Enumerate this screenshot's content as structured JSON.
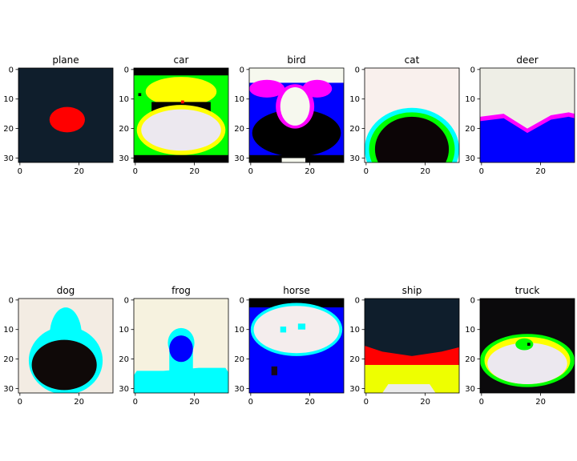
{
  "chart_data": [
    {
      "type": "heatmap",
      "title": "plane",
      "xticks": [
        "0",
        "20"
      ],
      "yticks": [
        "0",
        "10",
        "20",
        "30"
      ],
      "xlim": [
        0,
        32
      ],
      "ylim": [
        32,
        0
      ],
      "grid": false,
      "palette": {
        "bg": "#0f1e2c",
        "red": "#ff0000"
      },
      "regions": [
        {
          "shape": "rect",
          "color": "bg",
          "x": 0,
          "y": 0,
          "w": 32,
          "h": 32
        },
        {
          "shape": "ellipse",
          "color": "red",
          "cx": 16.5,
          "cy": 17.5,
          "rx": 6,
          "ry": 4.3
        }
      ]
    },
    {
      "type": "heatmap",
      "title": "car",
      "xticks": [
        "0",
        "20"
      ],
      "yticks": [
        "0",
        "10",
        "20",
        "30"
      ],
      "xlim": [
        0,
        32
      ],
      "ylim": [
        32,
        0
      ],
      "grid": false,
      "palette": {
        "black": "#000000",
        "green": "#00ff00",
        "yellow": "#ffff00",
        "white": "#ece8ef",
        "red": "#ff0000"
      },
      "regions": [
        {
          "shape": "rect",
          "color": "black",
          "x": 0,
          "y": 0,
          "w": 32,
          "h": 32
        },
        {
          "shape": "rect",
          "color": "green",
          "x": 0,
          "y": 2.5,
          "w": 32,
          "h": 27.5
        },
        {
          "shape": "ellipse",
          "color": "yellow",
          "cx": 16,
          "cy": 8,
          "rx": 12,
          "ry": 5
        },
        {
          "shape": "rect",
          "color": "black",
          "x": 6,
          "y": 11.5,
          "w": 20,
          "h": 4
        },
        {
          "shape": "ellipse",
          "color": "yellow",
          "cx": 16,
          "cy": 21,
          "rx": 15,
          "ry": 8.5
        },
        {
          "shape": "ellipse",
          "color": "white",
          "cx": 16,
          "cy": 21,
          "rx": 13.5,
          "ry": 7
        },
        {
          "shape": "rect",
          "color": "black",
          "x": 0,
          "y": 29.5,
          "w": 32,
          "h": 2.5
        },
        {
          "shape": "rect",
          "color": "black",
          "x": 1.5,
          "y": 8.5,
          "w": 1,
          "h": 1
        },
        {
          "shape": "rect",
          "color": "red",
          "x": 16,
          "y": 11,
          "w": 1,
          "h": 1
        }
      ]
    },
    {
      "type": "heatmap",
      "title": "bird",
      "xticks": [
        "0",
        "20"
      ],
      "yticks": [
        "0",
        "10",
        "20",
        "30"
      ],
      "xlim": [
        0,
        32
      ],
      "ylim": [
        32,
        0
      ],
      "grid": false,
      "palette": {
        "white": "#f6f8ee",
        "blue": "#0000ff",
        "magenta": "#ff00ff",
        "black": "#000000"
      },
      "regions": [
        {
          "shape": "rect",
          "color": "white",
          "x": 0,
          "y": 0,
          "w": 32,
          "h": 32
        },
        {
          "shape": "rect",
          "color": "blue",
          "x": 0,
          "y": 5,
          "w": 32,
          "h": 27
        },
        {
          "shape": "ellipse",
          "color": "magenta",
          "cx": 6,
          "cy": 7,
          "rx": 6,
          "ry": 3
        },
        {
          "shape": "ellipse",
          "color": "magenta",
          "cx": 23,
          "cy": 7,
          "rx": 5,
          "ry": 3
        },
        {
          "shape": "ellipse",
          "color": "black",
          "cx": 16,
          "cy": 22,
          "rx": 15,
          "ry": 8
        },
        {
          "shape": "ellipse",
          "color": "magenta",
          "cx": 15.5,
          "cy": 13,
          "rx": 6.5,
          "ry": 7.5
        },
        {
          "shape": "ellipse",
          "color": "white",
          "cx": 15.5,
          "cy": 13,
          "rx": 5,
          "ry": 6.5
        },
        {
          "shape": "rect",
          "color": "black",
          "x": 0,
          "y": 29.5,
          "w": 32,
          "h": 2.5
        },
        {
          "shape": "rect",
          "color": "white",
          "x": 11,
          "y": 30.5,
          "w": 8,
          "h": 1.5
        }
      ]
    },
    {
      "type": "heatmap",
      "title": "cat",
      "xticks": [
        "0",
        "20"
      ],
      "yticks": [
        "0",
        "10",
        "20",
        "30"
      ],
      "xlim": [
        0,
        32
      ],
      "ylim": [
        32,
        0
      ],
      "grid": false,
      "palette": {
        "white": "#f9f0ed",
        "cyan": "#00ffff",
        "green": "#00ff00",
        "black": "#0c0506"
      },
      "regions": [
        {
          "shape": "rect",
          "color": "white",
          "x": 0,
          "y": 0,
          "w": 32,
          "h": 32
        },
        {
          "shape": "ellipse",
          "color": "cyan",
          "cx": 16,
          "cy": 27.5,
          "rx": 16,
          "ry": 14
        },
        {
          "shape": "ellipse",
          "color": "green",
          "cx": 16,
          "cy": 27.5,
          "rx": 14.5,
          "ry": 12.5
        },
        {
          "shape": "ellipse",
          "color": "black",
          "cx": 16,
          "cy": 27.5,
          "rx": 12.5,
          "ry": 11
        }
      ]
    },
    {
      "type": "heatmap",
      "title": "deer",
      "xticks": [
        "0",
        "20"
      ],
      "yticks": [
        "0",
        "10",
        "20",
        "30"
      ],
      "xlim": [
        0,
        32
      ],
      "ylim": [
        32,
        0
      ],
      "grid": false,
      "palette": {
        "white": "#eeeee6",
        "magenta": "#ff00ff",
        "blue": "#0000ff"
      },
      "regions": [
        {
          "shape": "rect",
          "color": "white",
          "x": 0,
          "y": 0,
          "w": 32,
          "h": 32
        },
        {
          "shape": "polygon",
          "color": "magenta",
          "points": [
            [
              0,
              16.5
            ],
            [
              8,
              15.5
            ],
            [
              16,
              20.5
            ],
            [
              24,
              16
            ],
            [
              30,
              15
            ],
            [
              32,
              15.5
            ],
            [
              32,
              32
            ],
            [
              0,
              32
            ]
          ]
        },
        {
          "shape": "polygon",
          "color": "blue",
          "points": [
            [
              0,
              18
            ],
            [
              8,
              17
            ],
            [
              16,
              22
            ],
            [
              24,
              17.5
            ],
            [
              30,
              16.5
            ],
            [
              32,
              17
            ],
            [
              32,
              32
            ],
            [
              0,
              32
            ]
          ]
        }
      ]
    },
    {
      "type": "heatmap",
      "title": "dog",
      "xticks": [
        "0",
        "20"
      ],
      "yticks": [
        "0",
        "10",
        "20",
        "30"
      ],
      "xlim": [
        0,
        32
      ],
      "ylim": [
        32,
        0
      ],
      "grid": false,
      "palette": {
        "white": "#f3ece3",
        "cyan": "#00ffff",
        "black": "#0f0908"
      },
      "regions": [
        {
          "shape": "rect",
          "color": "white",
          "x": 0,
          "y": 0,
          "w": 32,
          "h": 32
        },
        {
          "shape": "ellipse",
          "color": "cyan",
          "cx": 16,
          "cy": 21,
          "rx": 12.5,
          "ry": 11.5
        },
        {
          "shape": "ellipse",
          "color": "cyan",
          "cx": 16,
          "cy": 13,
          "rx": 5.5,
          "ry": 10
        },
        {
          "shape": "ellipse",
          "color": "black",
          "cx": 15.5,
          "cy": 22.5,
          "rx": 11,
          "ry": 8.5
        }
      ]
    },
    {
      "type": "heatmap",
      "title": "frog",
      "xticks": [
        "0",
        "20"
      ],
      "yticks": [
        "0",
        "10",
        "20",
        "30"
      ],
      "xlim": [
        0,
        32
      ],
      "ylim": [
        32,
        0
      ],
      "grid": false,
      "palette": {
        "white": "#f6f2df",
        "cyan": "#00ffff",
        "blue": "#0000ff"
      },
      "regions": [
        {
          "shape": "rect",
          "color": "white",
          "x": 0,
          "y": 0,
          "w": 32,
          "h": 32
        },
        {
          "shape": "ellipse",
          "color": "cyan",
          "cx": 16,
          "cy": 15,
          "rx": 4.5,
          "ry": 5
        },
        {
          "shape": "rect",
          "color": "cyan",
          "x": 12,
          "y": 15,
          "w": 8,
          "h": 10
        },
        {
          "shape": "polygon",
          "color": "cyan",
          "points": [
            [
              1,
              24.5
            ],
            [
              10,
              24.5
            ],
            [
              22,
              23.5
            ],
            [
              31,
              23.5
            ],
            [
              32,
              25
            ],
            [
              32,
              32
            ],
            [
              0,
              32
            ],
            [
              0,
              26
            ]
          ]
        },
        {
          "shape": "ellipse",
          "color": "blue",
          "cx": 16,
          "cy": 17,
          "rx": 4,
          "ry": 4.5
        }
      ]
    },
    {
      "type": "heatmap",
      "title": "horse",
      "xticks": [
        "0",
        "20"
      ],
      "yticks": [
        "0",
        "10",
        "20",
        "30"
      ],
      "xlim": [
        0,
        32
      ],
      "ylim": [
        32,
        0
      ],
      "grid": false,
      "palette": {
        "black": "#000000",
        "blue": "#0000ff",
        "cyan": "#00ffff",
        "white": "#f4eded",
        "dark": "#180818"
      },
      "regions": [
        {
          "shape": "rect",
          "color": "blue",
          "x": 0,
          "y": 0,
          "w": 32,
          "h": 32
        },
        {
          "shape": "rect",
          "color": "black",
          "x": 0,
          "y": 0,
          "w": 32,
          "h": 3
        },
        {
          "shape": "ellipse",
          "color": "cyan",
          "cx": 16,
          "cy": 10.5,
          "rx": 15.5,
          "ry": 9
        },
        {
          "shape": "ellipse",
          "color": "white",
          "cx": 16,
          "cy": 10.5,
          "rx": 14.5,
          "ry": 8
        },
        {
          "shape": "rect",
          "color": "cyan",
          "x": 10.5,
          "y": 9.5,
          "w": 2,
          "h": 2
        },
        {
          "shape": "rect",
          "color": "cyan",
          "x": 16.5,
          "y": 8.5,
          "w": 2.5,
          "h": 2
        },
        {
          "shape": "rect",
          "color": "dark",
          "x": 7.5,
          "y": 23,
          "w": 2,
          "h": 3
        }
      ]
    },
    {
      "type": "heatmap",
      "title": "ship",
      "xticks": [
        "0",
        "20"
      ],
      "yticks": [
        "0",
        "10",
        "20",
        "30"
      ],
      "xlim": [
        0,
        32
      ],
      "ylim": [
        32,
        0
      ],
      "grid": false,
      "palette": {
        "bg": "#0f1e2c",
        "red": "#ff0000",
        "yellow": "#eeff00",
        "white": "#ececec"
      },
      "regions": [
        {
          "shape": "rect",
          "color": "bg",
          "x": 0,
          "y": 0,
          "w": 32,
          "h": 32
        },
        {
          "shape": "polygon",
          "color": "red",
          "points": [
            [
              0,
              16
            ],
            [
              6,
              18
            ],
            [
              16,
              19.5
            ],
            [
              26,
              18
            ],
            [
              32,
              16.5
            ],
            [
              32,
              32
            ],
            [
              0,
              32
            ]
          ]
        },
        {
          "shape": "rect",
          "color": "yellow",
          "x": 0,
          "y": 22.5,
          "w": 32,
          "h": 9.5
        },
        {
          "shape": "polygon",
          "color": "white",
          "points": [
            [
              6,
              32
            ],
            [
              8,
              29
            ],
            [
              22,
              29
            ],
            [
              24,
              32
            ]
          ]
        }
      ]
    },
    {
      "type": "heatmap",
      "title": "truck",
      "xticks": [
        "0",
        "20"
      ],
      "yticks": [
        "0",
        "10",
        "20",
        "30"
      ],
      "xlim": [
        0,
        32
      ],
      "ylim": [
        32,
        0
      ],
      "grid": false,
      "palette": {
        "bg": "#0b0a0c",
        "green": "#00ff00",
        "yellow": "#ffff00",
        "white": "#ece8ef",
        "black": "#000000"
      },
      "regions": [
        {
          "shape": "rect",
          "color": "bg",
          "x": 0,
          "y": 0,
          "w": 32,
          "h": 32
        },
        {
          "shape": "ellipse",
          "color": "green",
          "cx": 16,
          "cy": 21,
          "rx": 16,
          "ry": 9
        },
        {
          "shape": "ellipse",
          "color": "yellow",
          "cx": 16,
          "cy": 21,
          "rx": 14.5,
          "ry": 8
        },
        {
          "shape": "ellipse",
          "color": "white",
          "cx": 16,
          "cy": 22,
          "rx": 13.5,
          "ry": 7
        },
        {
          "shape": "ellipse",
          "color": "green",
          "cx": 15,
          "cy": 15.5,
          "rx": 3,
          "ry": 2
        },
        {
          "shape": "rect",
          "color": "black",
          "x": 16,
          "y": 15,
          "w": 1,
          "h": 1
        }
      ]
    }
  ]
}
